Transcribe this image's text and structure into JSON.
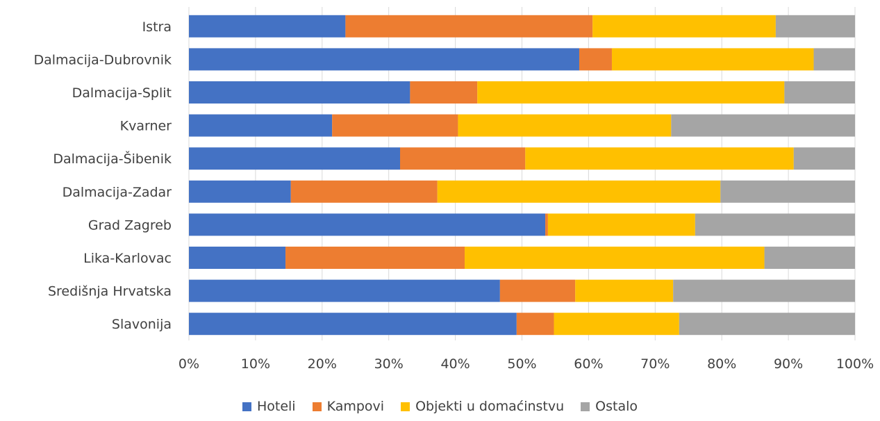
{
  "chart_data": {
    "type": "bar",
    "orientation": "horizontal",
    "stacked": true,
    "title": "",
    "xlabel": "",
    "ylabel": "",
    "xlim": [
      0,
      100
    ],
    "x_unit": "%",
    "x_ticks": [
      "0%",
      "10%",
      "20%",
      "30%",
      "40%",
      "50%",
      "60%",
      "70%",
      "80%",
      "90%",
      "100%"
    ],
    "grid": "vertical",
    "legend_position": "bottom",
    "categories": [
      "Istra",
      "Dalmacija-Dubrovnik",
      "Dalmacija-Split",
      "Kvarner",
      "Dalmacija-Šibenik",
      "Dalmacija-Zadar",
      "Grad Zagreb",
      "Lika-Karlovac",
      "Središnja Hrvatska",
      "Slavonija"
    ],
    "series": [
      {
        "name": "Hoteli",
        "color": "#4472C4",
        "values": [
          23.5,
          58.6,
          33.2,
          21.5,
          31.7,
          15.3,
          53.5,
          14.5,
          46.7,
          49.2
        ]
      },
      {
        "name": "Kampovi",
        "color": "#ED7D31",
        "values": [
          37.1,
          4.9,
          10.1,
          18.9,
          18.8,
          22.0,
          0.4,
          26.9,
          11.3,
          5.6
        ]
      },
      {
        "name": "Objekti u domaćinstvu",
        "color": "#FFC000",
        "values": [
          27.5,
          30.3,
          46.1,
          32.0,
          40.3,
          42.5,
          22.1,
          45.0,
          14.7,
          18.8
        ]
      },
      {
        "name": "Ostalo",
        "color": "#A5A5A5",
        "values": [
          11.9,
          6.2,
          10.6,
          27.6,
          9.2,
          20.2,
          24.0,
          13.6,
          27.3,
          26.4
        ]
      }
    ]
  }
}
